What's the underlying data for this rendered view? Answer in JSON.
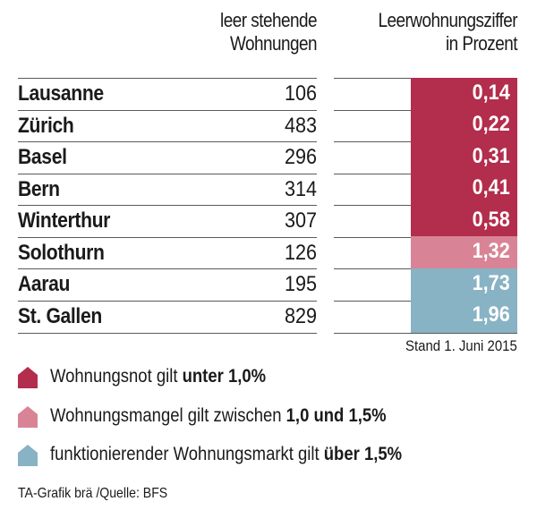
{
  "chart_data": {
    "type": "table",
    "columns": [
      {
        "key": "city",
        "label": ""
      },
      {
        "key": "leer",
        "label": "leer stehende Wohnungen"
      },
      {
        "key": "ziffer",
        "label": "Leerwohnungsziffer in Prozent"
      }
    ],
    "header": {
      "left_line1": "leer stehende",
      "left_line2": "Wohnungen",
      "right_line1": "Leerwohnungsziffer",
      "right_line2": "in Prozent"
    },
    "rows": [
      {
        "city": "Lausanne",
        "count": "106",
        "pct": "0,14",
        "value": 0.14,
        "category": "not"
      },
      {
        "city": "Zürich",
        "count": "483",
        "pct": "0,22",
        "value": 0.22,
        "category": "not"
      },
      {
        "city": "Basel",
        "count": "296",
        "pct": "0,31",
        "value": 0.31,
        "category": "not"
      },
      {
        "city": "Bern",
        "count": "314",
        "pct": "0,41",
        "value": 0.41,
        "category": "not"
      },
      {
        "city": "Winterthur",
        "count": "307",
        "pct": "0,58",
        "value": 0.58,
        "category": "not"
      },
      {
        "city": "Solothurn",
        "count": "126",
        "pct": "1,32",
        "value": 1.32,
        "category": "mangel"
      },
      {
        "city": "Aarau",
        "count": "195",
        "pct": "1,73",
        "value": 1.73,
        "category": "markt"
      },
      {
        "city": "St. Gallen",
        "count": "829",
        "pct": "1,96",
        "value": 1.96,
        "category": "markt"
      }
    ],
    "annotation": "Stand 1. Juni 2015",
    "legend": [
      {
        "key": "not",
        "color": "#b32d4d",
        "text": "Wohnungsnot gilt ",
        "bold": "unter 1,0%",
        "icon": "house-icon"
      },
      {
        "key": "mangel",
        "color": "#d98496",
        "text": "Wohnungsmangel gilt zwischen ",
        "bold": "1,0 und 1,5%",
        "icon": "house-icon"
      },
      {
        "key": "markt",
        "color": "#88b3c4",
        "text": "funktionierender Wohnungsmarkt gilt ",
        "bold": "über 1,5%",
        "icon": "house-icon"
      }
    ]
  },
  "credit": "TA-Grafik brä /Quelle: BFS"
}
